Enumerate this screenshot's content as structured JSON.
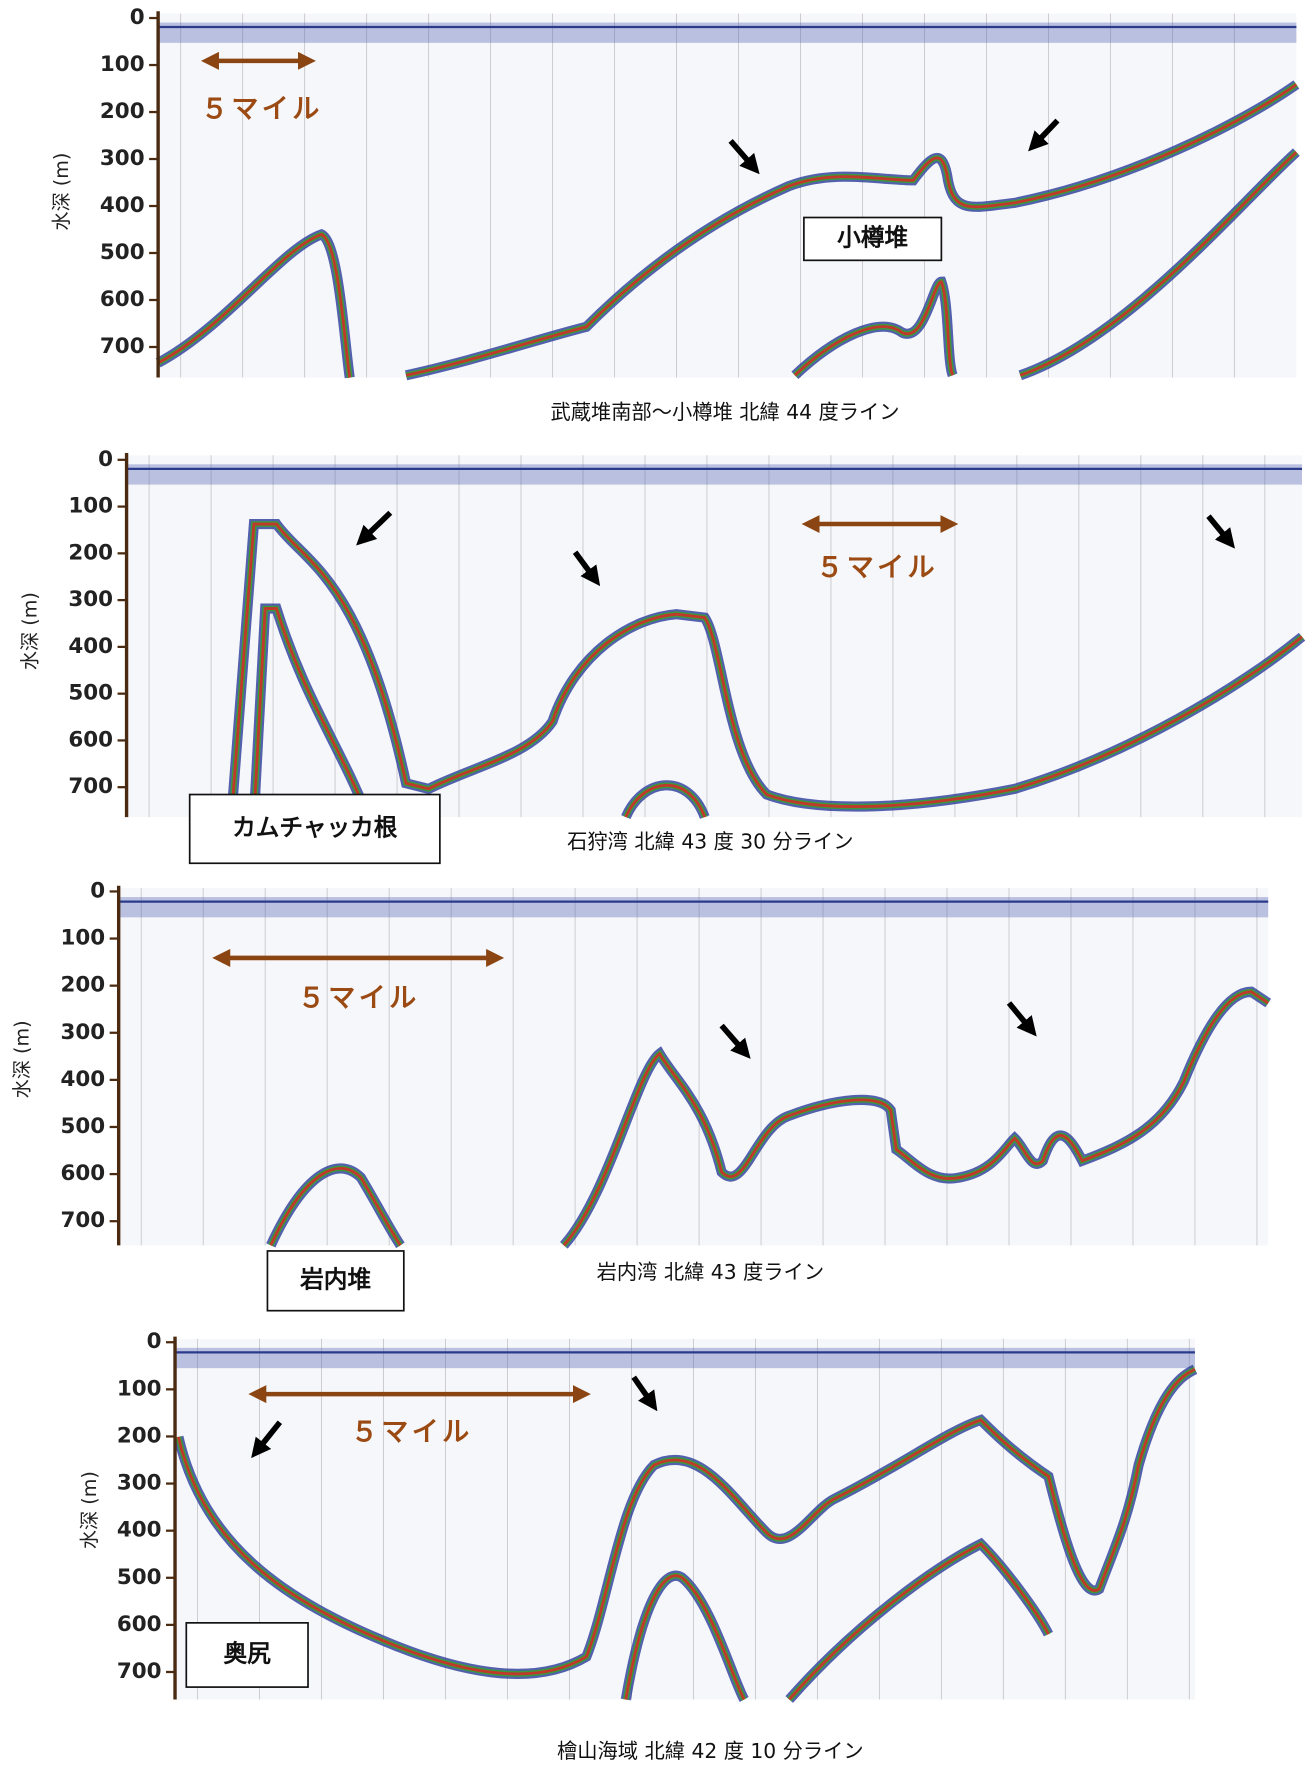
{
  "panels": [
    {
      "ylabel": "水深 (m)",
      "yticks": [
        "0",
        "100",
        "200",
        "300",
        "400",
        "500",
        "600",
        "700"
      ],
      "scale_label": "５マイル",
      "place_label": "小樽堆",
      "caption": "武蔵堆南部～小樽堆  北緯 44 度ライン"
    },
    {
      "ylabel": "水深 (m)",
      "yticks": [
        "0",
        "100",
        "200",
        "300",
        "400",
        "500",
        "600",
        "700"
      ],
      "scale_label": "５マイル",
      "place_label": "カムチャッカ根",
      "caption": "石狩湾  北緯 43 度 30 分ライン"
    },
    {
      "ylabel": "水深 (m)",
      "yticks": [
        "0",
        "100",
        "200",
        "300",
        "400",
        "500",
        "600",
        "700"
      ],
      "scale_label": "５マイル",
      "place_label": "岩内堆",
      "caption": "岩内湾  北緯 43 度ライン"
    },
    {
      "ylabel": "水深 (m)",
      "yticks": [
        "0",
        "100",
        "200",
        "300",
        "400",
        "500",
        "600",
        "700"
      ],
      "scale_label": "５マイル",
      "place_label": "奥尻",
      "caption": "檜山海域  北緯 42 度 10 分ライン"
    }
  ]
}
